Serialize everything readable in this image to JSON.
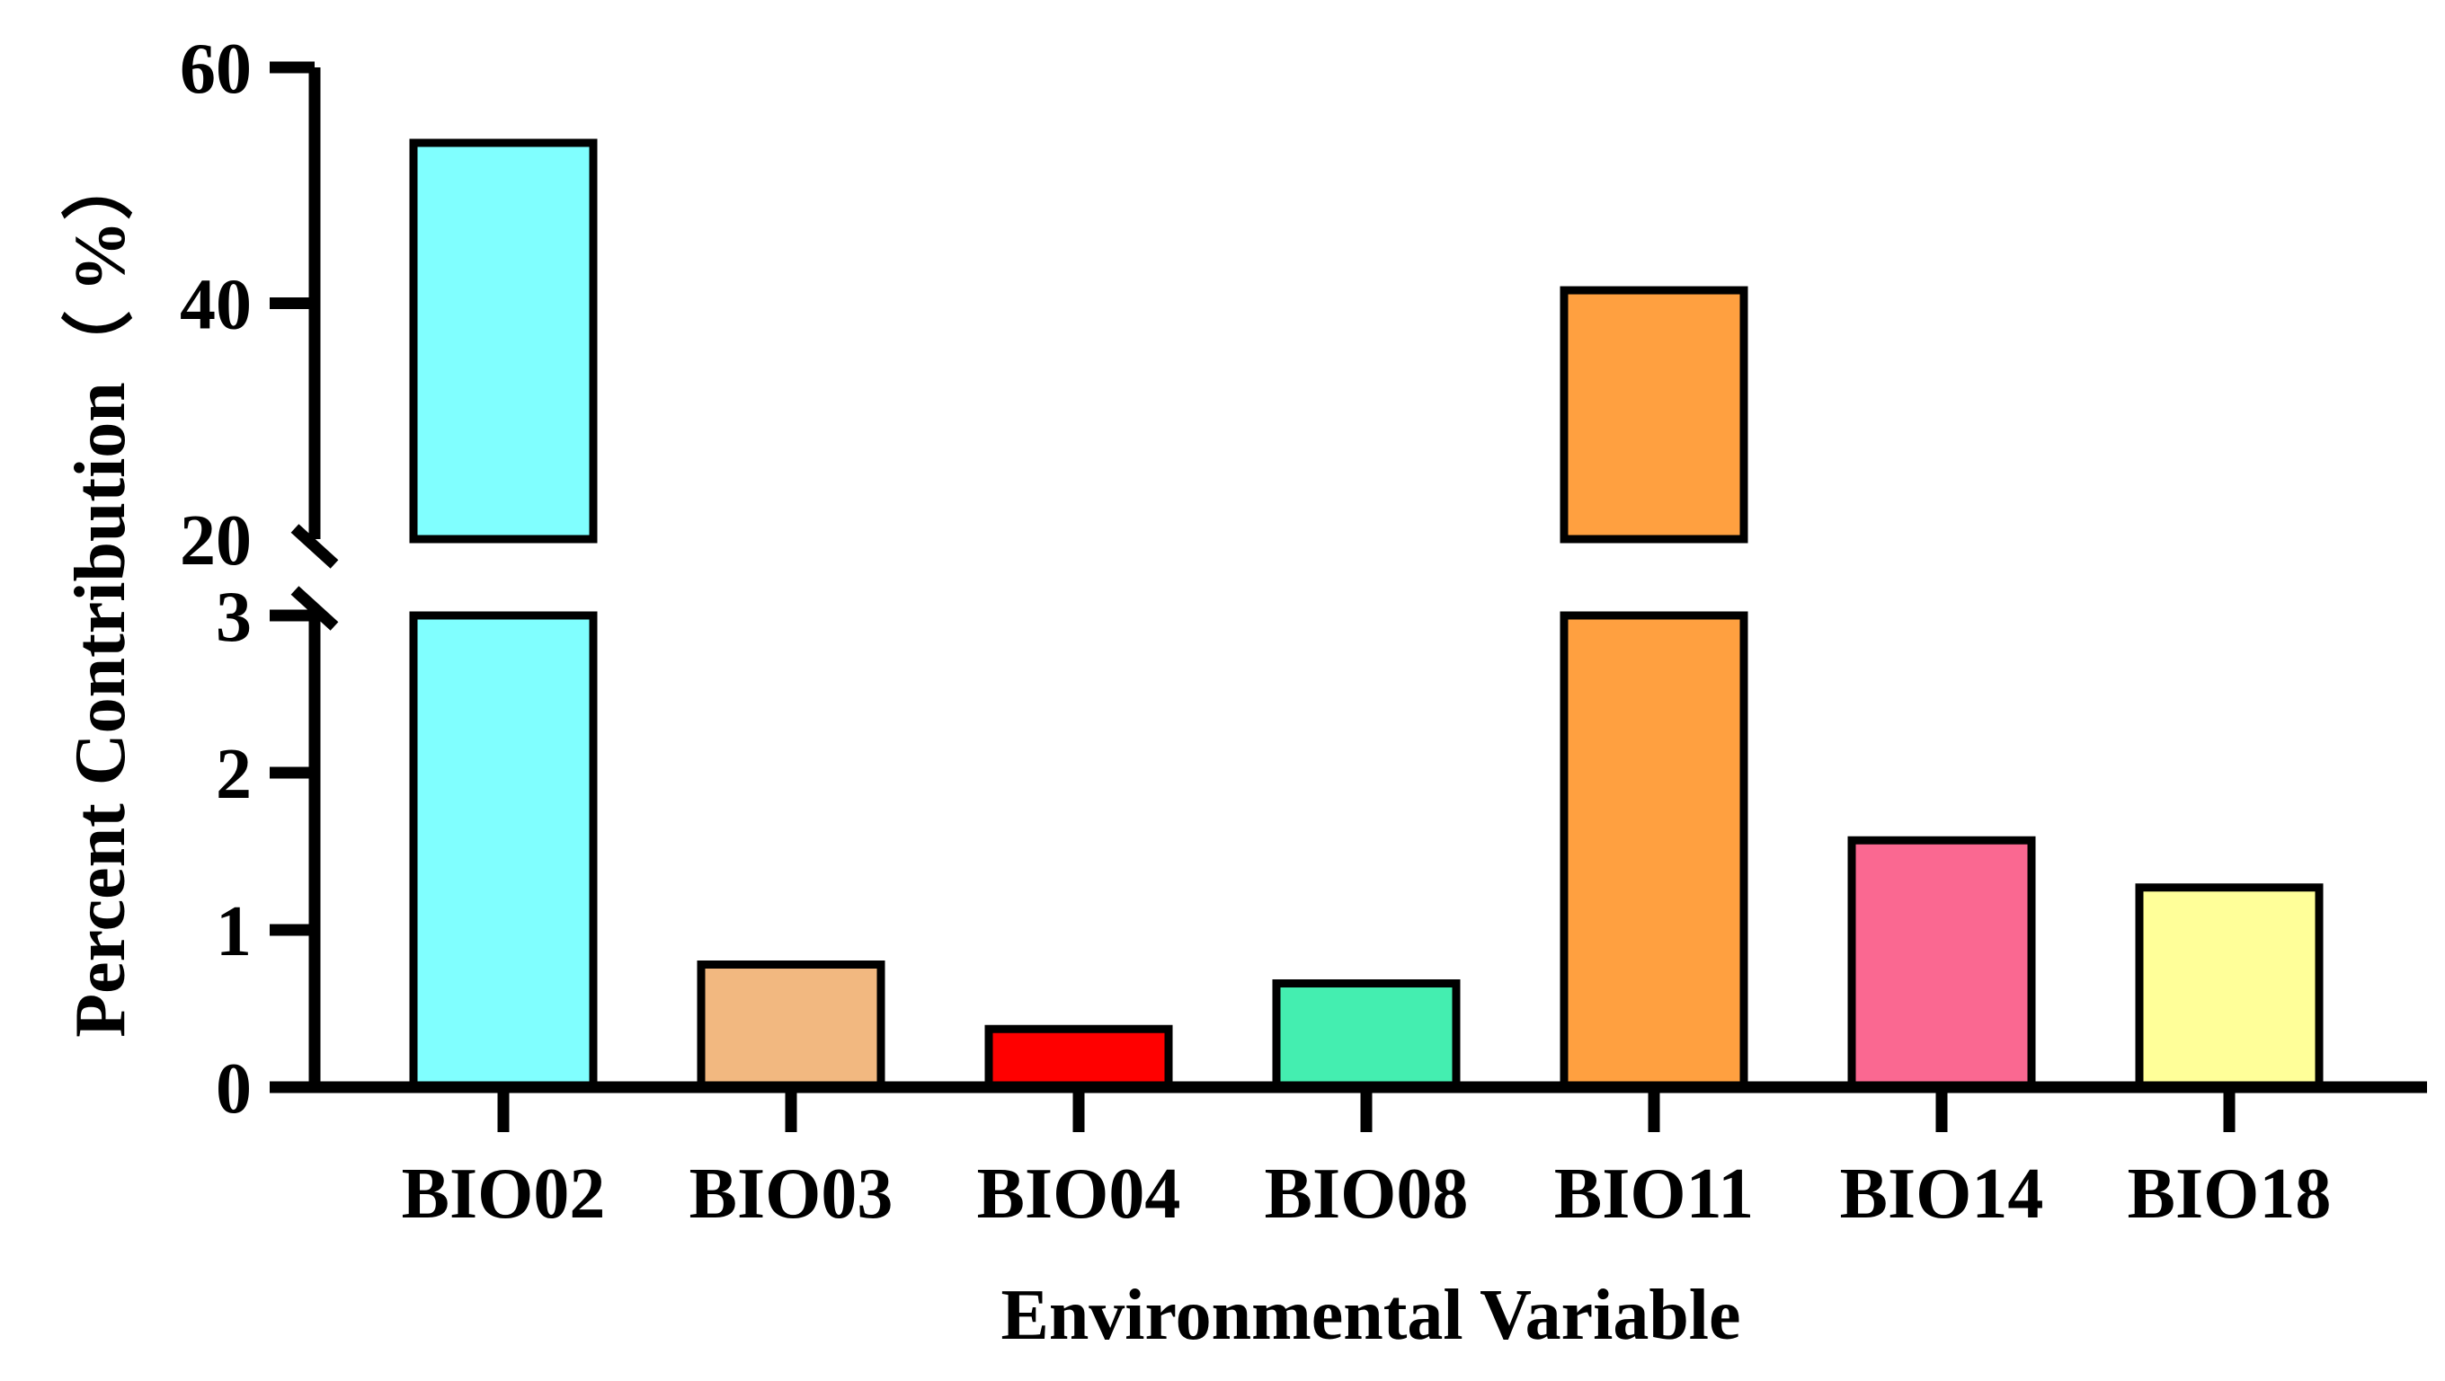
{
  "chart_data": {
    "type": "bar",
    "title": "",
    "xlabel": "Environmental Variable",
    "ylabel": "Percent Contribution（ %）",
    "categories": [
      "BIO02",
      "BIO03",
      "BIO04",
      "BIO08",
      "BIO11",
      "BIO14",
      "BIO18"
    ],
    "values": [
      53.6,
      0.78,
      0.37,
      0.66,
      41.1,
      1.57,
      1.27
    ],
    "colors": [
      "#80FFFF",
      "#F2B880",
      "#FF0000",
      "#44EEB0",
      "#FFA040",
      "#FA6891",
      "#FFFF99"
    ],
    "axis_break": {
      "lower_segment": [
        0,
        3
      ],
      "upper_segment": [
        20,
        60
      ]
    },
    "ylim": [
      0,
      60
    ],
    "yticks_lower": [
      0,
      1,
      2,
      3
    ],
    "yticks_upper": [
      20,
      40,
      60
    ],
    "ytick_labels_lower": [
      "0",
      "1",
      "2",
      "3"
    ],
    "ytick_labels_upper": [
      "20",
      "40",
      "60"
    ],
    "grid": false,
    "legend": "none"
  }
}
